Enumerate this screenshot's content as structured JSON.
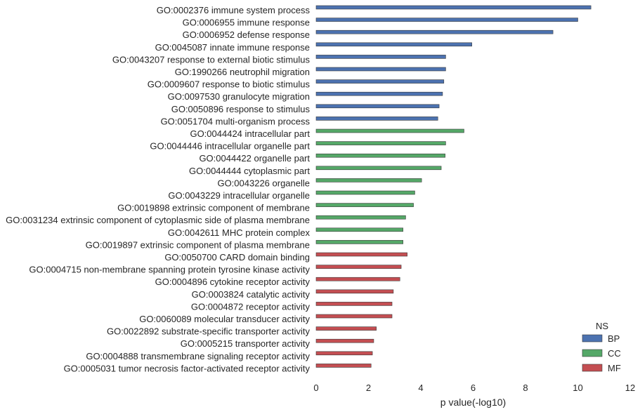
{
  "chart_data": {
    "type": "bar",
    "orientation": "horizontal",
    "categories": [
      "GO:0002376 immune system process",
      "GO:0006955 immune response",
      "GO:0006952 defense response",
      "GO:0045087 innate immune response",
      "GO:0043207 response to external biotic stimulus",
      "GO:1990266 neutrophil migration",
      "GO:0009607 response to biotic stimulus",
      "GO:0097530 granulocyte migration",
      "GO:0050896 response to stimulus",
      "GO:0051704 multi-organism process",
      "GO:0044424 intracellular part",
      "GO:0044446 intracellular organelle part",
      "GO:0044422 organelle part",
      "GO:0044444 cytoplasmic part",
      "GO:0043226 organelle",
      "GO:0043229 intracellular organelle",
      "GO:0019898 extrinsic component of membrane",
      "GO:0031234 extrinsic component of cytoplasmic side of plasma membrane",
      "GO:0042611 MHC protein complex",
      "GO:0019897 extrinsic component of plasma membrane",
      "GO:0050700 CARD domain binding",
      "GO:0004715 non-membrane spanning protein tyrosine kinase activity",
      "GO:0004896 cytokine receptor activity",
      "GO:0003824 catalytic activity",
      "GO:0004872 receptor activity",
      "GO:0060089 molecular transducer activity",
      "GO:0022892 substrate-specific transporter activity",
      "GO:0005215 transporter activity",
      "GO:0004888 transmembrane signaling receptor activity",
      "GO:0005031 tumor necrosis factor-activated receptor activity"
    ],
    "values": [
      10.5,
      10.0,
      9.05,
      5.95,
      4.95,
      4.95,
      4.88,
      4.83,
      4.7,
      4.65,
      5.65,
      4.95,
      4.93,
      4.78,
      4.03,
      3.77,
      3.72,
      3.42,
      3.32,
      3.32,
      3.48,
      3.25,
      3.2,
      2.95,
      2.9,
      2.9,
      2.3,
      2.2,
      2.15,
      2.1
    ],
    "groups": [
      "BP",
      "BP",
      "BP",
      "BP",
      "BP",
      "BP",
      "BP",
      "BP",
      "BP",
      "BP",
      "CC",
      "CC",
      "CC",
      "CC",
      "CC",
      "CC",
      "CC",
      "CC",
      "CC",
      "CC",
      "MF",
      "MF",
      "MF",
      "MF",
      "MF",
      "MF",
      "MF",
      "MF",
      "MF",
      "MF"
    ],
    "xlabel": "p value(-log10)",
    "xlim": [
      0,
      12
    ],
    "xticks": [
      "0",
      "2",
      "4",
      "6",
      "8",
      "10",
      "12"
    ],
    "grid": false,
    "legend": {
      "title": "NS",
      "placement": "bottom-right",
      "entries": [
        {
          "name": "BP",
          "color": "#4c72b0"
        },
        {
          "name": "CC",
          "color": "#55a868"
        },
        {
          "name": "MF",
          "color": "#c44e52"
        }
      ]
    }
  }
}
